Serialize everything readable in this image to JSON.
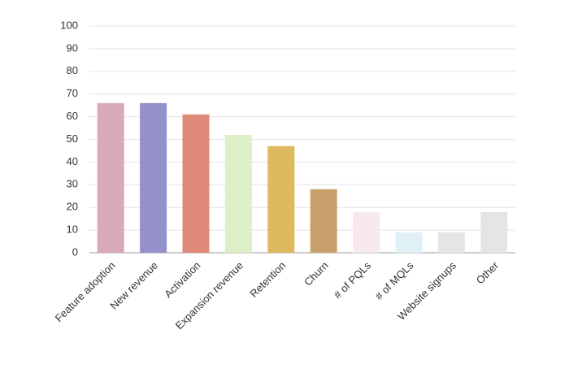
{
  "chart_data": {
    "type": "bar",
    "categories": [
      "Feature adoption",
      "New revenue",
      "Activation",
      "Expansion revenue",
      "Retention",
      "Churn",
      "# of PQLs",
      "# of MQLs",
      "Website signups",
      "Other"
    ],
    "values": [
      66,
      66,
      61,
      52,
      47,
      28,
      18,
      9,
      9,
      18
    ],
    "colors": [
      "#d9a9b8",
      "#9490c9",
      "#e08a79",
      "#dcefc6",
      "#dfb95e",
      "#c9a06b",
      "#f7e9ee",
      "#dff1f6",
      "#e5e5e5",
      "#e5e5e5"
    ],
    "ylim": [
      0,
      100
    ],
    "yticks": [
      0,
      10,
      20,
      30,
      40,
      50,
      60,
      70,
      80,
      90,
      100
    ],
    "grid": true
  }
}
